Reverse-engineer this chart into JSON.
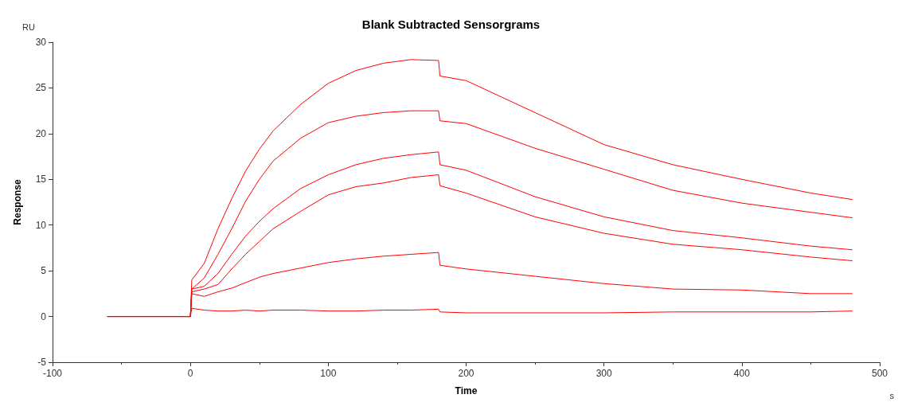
{
  "chart_data": {
    "type": "line",
    "title": "Blank Subtracted Sensorgrams",
    "xlabel": "Time",
    "ylabel": "Response",
    "annotations": [
      "RU",
      "s"
    ],
    "x": [
      -60,
      -30,
      0,
      1,
      10,
      20,
      30,
      40,
      50,
      60,
      80,
      100,
      120,
      140,
      160,
      180,
      181,
      200,
      250,
      300,
      350,
      400,
      450,
      480
    ],
    "series": [
      {
        "color": "#ff0000",
        "values": [
          0,
          0,
          0,
          4,
          5.8,
          9.6,
          12.9,
          15.9,
          18.3,
          20.3,
          23.2,
          25.5,
          26.9,
          27.7,
          28.1,
          28.0,
          26.3,
          25.8,
          22.3,
          18.8,
          16.6,
          15.0,
          13.5,
          12.8
        ]
      },
      {
        "color": "#ff0000",
        "values": [
          0,
          0,
          0,
          3,
          4.2,
          6.8,
          9.6,
          12.6,
          15.0,
          17.0,
          19.5,
          21.2,
          21.9,
          22.3,
          22.5,
          22.5,
          21.4,
          21.1,
          18.4,
          16.1,
          13.8,
          12.4,
          11.4,
          10.8
        ]
      },
      {
        "color": "#ff0000",
        "values": [
          0,
          0,
          0,
          3,
          3.3,
          4.7,
          6.8,
          8.8,
          10.4,
          11.8,
          14.0,
          15.5,
          16.6,
          17.3,
          17.7,
          18.0,
          16.6,
          16.0,
          13.1,
          10.9,
          9.4,
          8.6,
          7.7,
          7.3
        ]
      },
      {
        "color": "#ff0000",
        "values": [
          0,
          0,
          0,
          2.7,
          3.0,
          3.5,
          5.2,
          6.8,
          8.2,
          9.6,
          11.5,
          13.3,
          14.2,
          14.6,
          15.2,
          15.5,
          14.3,
          13.5,
          10.9,
          9.1,
          7.9,
          7.3,
          6.5,
          6.1
        ]
      },
      {
        "color": "#ff0000",
        "values": [
          0,
          0,
          0,
          2.5,
          2.2,
          2.7,
          3.1,
          3.7,
          4.3,
          4.7,
          5.3,
          5.9,
          6.3,
          6.6,
          6.8,
          7.0,
          5.6,
          5.2,
          4.4,
          3.6,
          3.0,
          2.9,
          2.5,
          2.5
        ]
      },
      {
        "color": "#ff0000",
        "values": [
          0,
          0,
          0,
          0.9,
          0.7,
          0.6,
          0.6,
          0.7,
          0.6,
          0.7,
          0.7,
          0.6,
          0.6,
          0.7,
          0.7,
          0.8,
          0.5,
          0.4,
          0.4,
          0.4,
          0.5,
          0.5,
          0.5,
          0.6
        ]
      }
    ],
    "xlim": [
      -100,
      500
    ],
    "xticks": [
      -100,
      0,
      100,
      200,
      300,
      400,
      500
    ],
    "ylim": [
      -5,
      30
    ],
    "yticks": [
      -5,
      0,
      5,
      10,
      15,
      20,
      25,
      30
    ],
    "grid": false,
    "marker": "none",
    "line_style": "solid"
  }
}
